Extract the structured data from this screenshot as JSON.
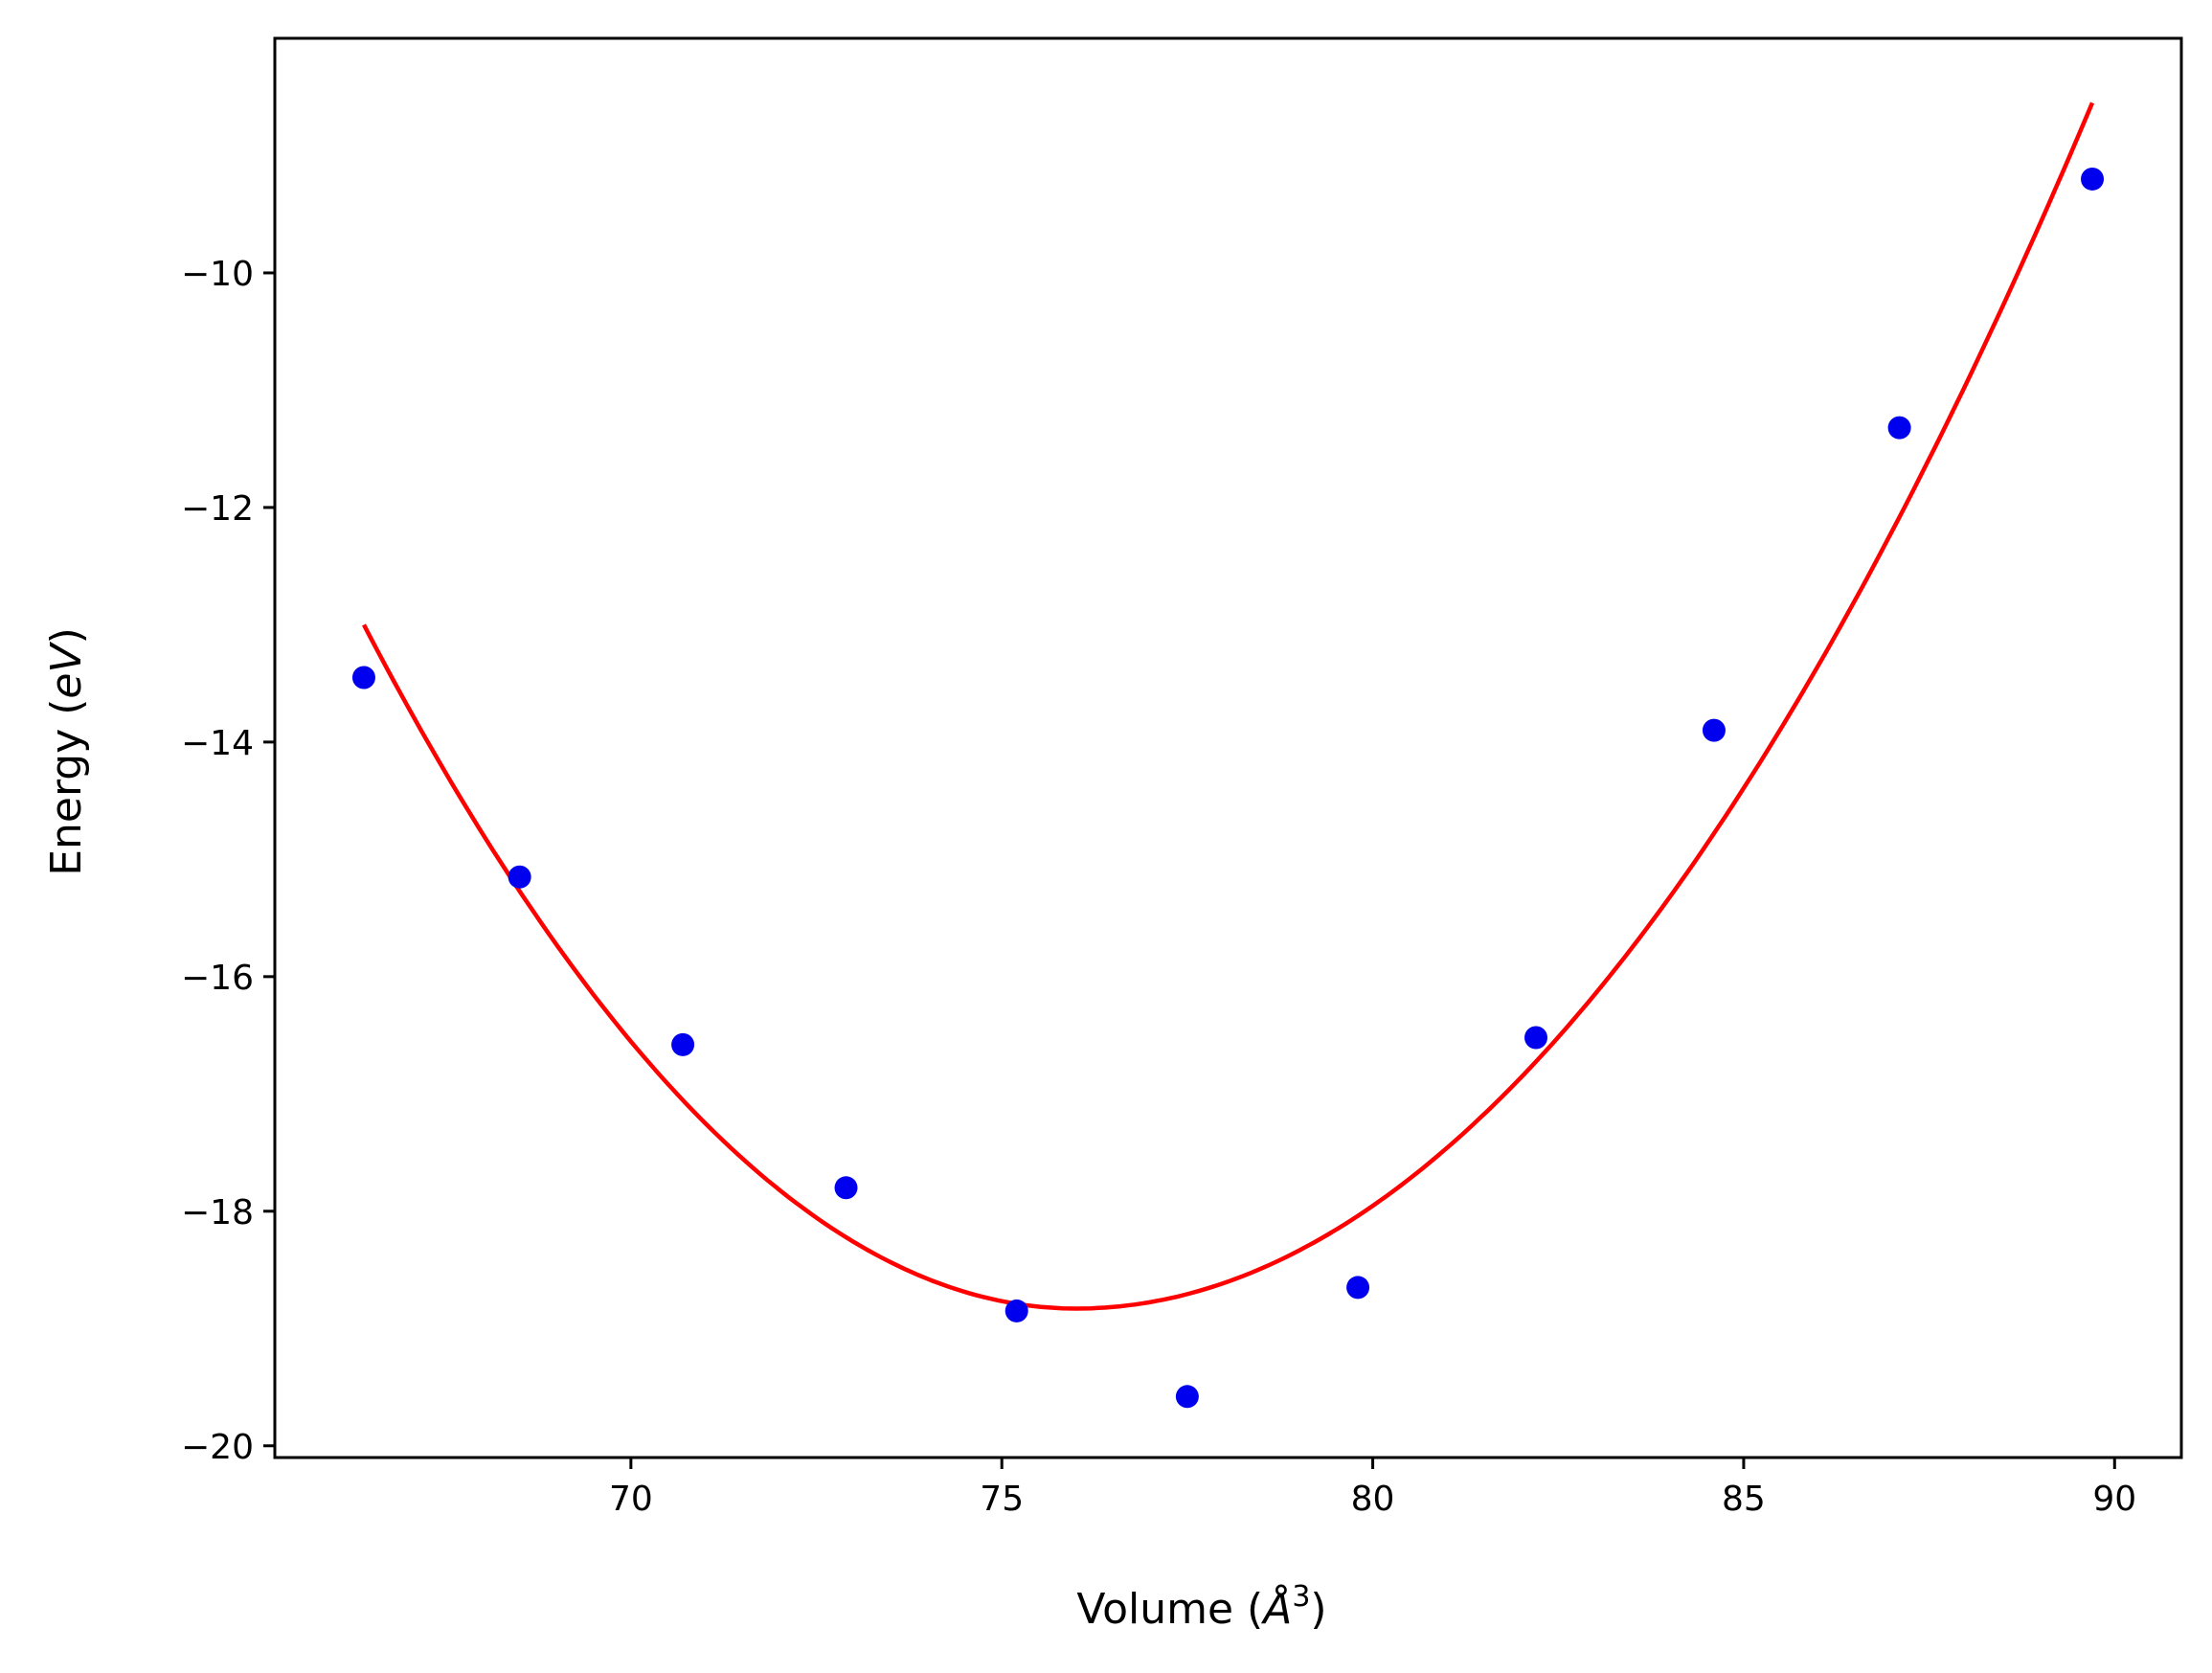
{
  "chart_data": {
    "type": "scatter",
    "title": "",
    "xlabel": {
      "prefix": "Volume (",
      "symbol": "Å",
      "power": "3",
      "suffix": ")"
    },
    "ylabel": {
      "prefix": "Energy (",
      "unit": "eV",
      "suffix": ")"
    },
    "xlim": [
      65.2,
      90.9
    ],
    "ylim": [
      -20.1,
      -8.0
    ],
    "x_ticks": [
      70,
      75,
      80,
      85,
      90
    ],
    "x_tick_labels": [
      "70",
      "75",
      "80",
      "85",
      "90"
    ],
    "y_ticks": [
      -20,
      -18,
      -16,
      -14,
      -12,
      -10
    ],
    "y_tick_labels": [
      "−20",
      "−18",
      "−16",
      "−14",
      "−12",
      "−10"
    ],
    "grid": false,
    "colors": {
      "points": "#0000ee",
      "fit": "#ff0000"
    },
    "series": [
      {
        "kind": "points",
        "x": [
          66.4,
          68.5,
          70.7,
          72.9,
          75.2,
          77.5,
          79.8,
          82.2,
          84.6,
          87.1,
          89.7
        ],
        "y": [
          -13.45,
          -15.15,
          -16.58,
          -17.8,
          -18.85,
          -19.58,
          -18.65,
          -16.52,
          -13.9,
          -11.32,
          -9.2
        ]
      },
      {
        "kind": "fit-curve",
        "x_range": [
          66.4,
          89.7
        ],
        "vertex": [
          76.0,
          -18.83
        ],
        "end_values": [
          -13.0,
          -8.55
        ]
      }
    ]
  }
}
